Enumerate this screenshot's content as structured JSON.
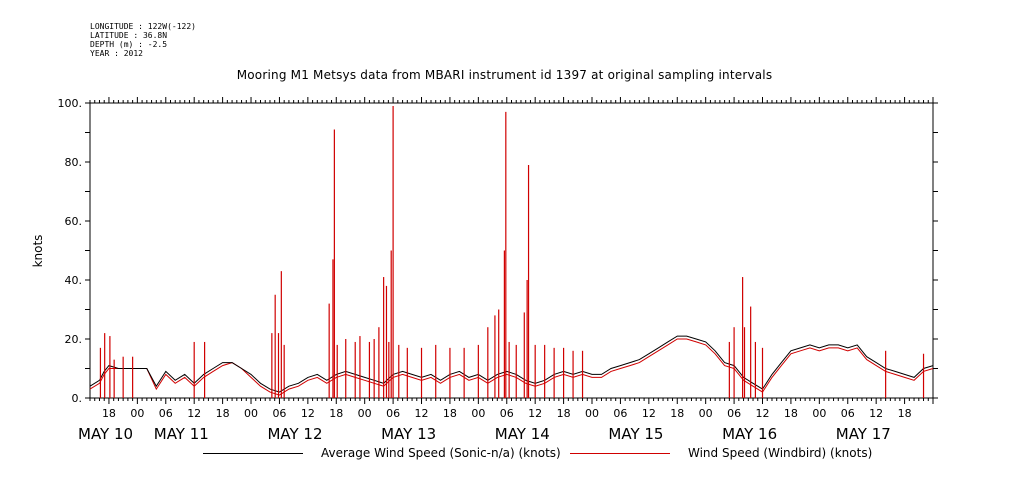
{
  "metadata": {
    "longitude": "LONGITUDE : 122W(-122)",
    "latitude": "LATITUDE : 36.8N",
    "depth": "DEPTH (m) : -2.5",
    "year": "YEAR : 2012"
  },
  "colors": {
    "average": "#000000",
    "windbird": "#d00000"
  },
  "chart_data": {
    "type": "line",
    "title": "Mooring M1 Metsys data from MBARI instrument id 1397 at original sampling intervals",
    "ylabel": "knots",
    "xlabel": "",
    "ylim": [
      0,
      100
    ],
    "yticks": [
      0,
      20,
      40,
      60,
      80,
      100
    ],
    "ytick_labels": [
      "0.",
      "20.",
      "40.",
      "60.",
      "80.",
      "100."
    ],
    "xlim_hours": [
      14,
      192
    ],
    "hour_ticks": [
      {
        "h": 18,
        "label": "18"
      },
      {
        "h": 24,
        "label": "00"
      },
      {
        "h": 30,
        "label": "06"
      },
      {
        "h": 36,
        "label": "12"
      },
      {
        "h": 42,
        "label": "18"
      },
      {
        "h": 48,
        "label": "00"
      },
      {
        "h": 54,
        "label": "06"
      },
      {
        "h": 60,
        "label": "12"
      },
      {
        "h": 66,
        "label": "18"
      },
      {
        "h": 72,
        "label": "00"
      },
      {
        "h": 78,
        "label": "06"
      },
      {
        "h": 84,
        "label": "12"
      },
      {
        "h": 90,
        "label": "18"
      },
      {
        "h": 96,
        "label": "00"
      },
      {
        "h": 102,
        "label": "06"
      },
      {
        "h": 108,
        "label": "12"
      },
      {
        "h": 114,
        "label": "18"
      },
      {
        "h": 120,
        "label": "00"
      },
      {
        "h": 126,
        "label": "06"
      },
      {
        "h": 132,
        "label": "12"
      },
      {
        "h": 138,
        "label": "18"
      },
      {
        "h": 144,
        "label": "00"
      },
      {
        "h": 150,
        "label": "06"
      },
      {
        "h": 156,
        "label": "12"
      },
      {
        "h": 162,
        "label": "18"
      },
      {
        "h": 168,
        "label": "00"
      },
      {
        "h": 174,
        "label": "06"
      },
      {
        "h": 180,
        "label": "12"
      },
      {
        "h": 186,
        "label": "18"
      }
    ],
    "day_labels": [
      {
        "h": 14,
        "label": "MAY 10"
      },
      {
        "h": 30,
        "label": "MAY 11"
      },
      {
        "h": 54,
        "label": "MAY 12"
      },
      {
        "h": 78,
        "label": "MAY 13"
      },
      {
        "h": 102,
        "label": "MAY 14"
      },
      {
        "h": 126,
        "label": "MAY 15"
      },
      {
        "h": 150,
        "label": "MAY 16"
      },
      {
        "h": 174,
        "label": "MAY 17"
      }
    ],
    "series": [
      {
        "name": "Average Wind Speed (Sonic-n/a) (knots)",
        "color": "#000000",
        "x": [
          14,
          16,
          17,
          18,
          20,
          22,
          24,
          26,
          28,
          30,
          32,
          34,
          36,
          38,
          40,
          42,
          44,
          46,
          48,
          50,
          52,
          54,
          56,
          58,
          60,
          62,
          64,
          66,
          68,
          70,
          72,
          74,
          76,
          78,
          80,
          82,
          84,
          86,
          88,
          90,
          92,
          94,
          96,
          98,
          100,
          102,
          104,
          106,
          108,
          110,
          112,
          114,
          116,
          118,
          120,
          122,
          124,
          126,
          128,
          130,
          132,
          134,
          136,
          138,
          140,
          142,
          144,
          146,
          148,
          150,
          152,
          154,
          156,
          158,
          160,
          162,
          164,
          166,
          168,
          170,
          172,
          174,
          176,
          178,
          180,
          182,
          184,
          186,
          188,
          190,
          192
        ],
        "y": [
          4,
          6,
          9,
          11,
          10,
          10,
          10,
          10,
          4,
          9,
          6,
          8,
          5,
          8,
          10,
          12,
          12,
          10,
          8,
          5,
          3,
          2,
          4,
          5,
          7,
          8,
          6,
          8,
          9,
          8,
          7,
          6,
          5,
          8,
          9,
          8,
          7,
          8,
          6,
          8,
          9,
          7,
          8,
          6,
          8,
          9,
          8,
          6,
          5,
          6,
          8,
          9,
          8,
          9,
          8,
          8,
          10,
          11,
          12,
          13,
          15,
          17,
          19,
          21,
          21,
          20,
          19,
          16,
          12,
          11,
          7,
          5,
          3,
          8,
          12,
          16,
          17,
          18,
          17,
          18,
          18,
          17,
          18,
          14,
          12,
          10,
          9,
          8,
          7,
          10,
          11
        ]
      },
      {
        "name": "Wind Speed (Windbird) (knots)",
        "color": "#d00000",
        "x": [
          14,
          16,
          17,
          18,
          20,
          22,
          24,
          26,
          28,
          30,
          32,
          34,
          36,
          38,
          40,
          42,
          44,
          46,
          48,
          50,
          52,
          54,
          56,
          58,
          60,
          62,
          64,
          66,
          68,
          70,
          72,
          74,
          76,
          78,
          80,
          82,
          84,
          86,
          88,
          90,
          92,
          94,
          96,
          98,
          100,
          102,
          104,
          106,
          108,
          110,
          112,
          114,
          116,
          118,
          120,
          122,
          124,
          126,
          128,
          130,
          132,
          134,
          136,
          138,
          140,
          142,
          144,
          146,
          148,
          150,
          152,
          154,
          156,
          158,
          160,
          162,
          164,
          166,
          168,
          170,
          172,
          174,
          176,
          178,
          180,
          182,
          184,
          186,
          188,
          190,
          192
        ],
        "y": [
          3,
          5,
          8,
          10,
          10,
          10,
          10,
          10,
          3,
          8,
          5,
          7,
          4,
          7,
          9,
          11,
          12,
          10,
          7,
          4,
          2,
          1,
          3,
          4,
          6,
          7,
          5,
          7,
          8,
          7,
          6,
          5,
          4,
          7,
          8,
          7,
          6,
          7,
          5,
          7,
          8,
          6,
          7,
          5,
          7,
          8,
          7,
          5,
          4,
          5,
          7,
          8,
          7,
          8,
          7,
          7,
          9,
          10,
          11,
          12,
          14,
          16,
          18,
          20,
          20,
          19,
          18,
          15,
          11,
          10,
          6,
          4,
          2,
          7,
          11,
          15,
          16,
          17,
          16,
          17,
          17,
          16,
          17,
          13,
          11,
          9,
          8,
          7,
          6,
          9,
          10
        ]
      }
    ],
    "windbird_spikes": [
      {
        "x": 16.2,
        "y": 17
      },
      {
        "x": 17.1,
        "y": 22
      },
      {
        "x": 18.2,
        "y": 21
      },
      {
        "x": 19.1,
        "y": 13
      },
      {
        "x": 21,
        "y": 14
      },
      {
        "x": 23,
        "y": 14
      },
      {
        "x": 36,
        "y": 19
      },
      {
        "x": 38.2,
        "y": 19
      },
      {
        "x": 52.4,
        "y": 22
      },
      {
        "x": 53.1,
        "y": 35
      },
      {
        "x": 53.8,
        "y": 22
      },
      {
        "x": 54.4,
        "y": 43
      },
      {
        "x": 55,
        "y": 18
      },
      {
        "x": 64.5,
        "y": 32
      },
      {
        "x": 65.3,
        "y": 47
      },
      {
        "x": 65.6,
        "y": 91
      },
      {
        "x": 66.2,
        "y": 18
      },
      {
        "x": 68,
        "y": 20
      },
      {
        "x": 70,
        "y": 19
      },
      {
        "x": 71,
        "y": 21
      },
      {
        "x": 73,
        "y": 19
      },
      {
        "x": 74,
        "y": 20
      },
      {
        "x": 75,
        "y": 24
      },
      {
        "x": 76,
        "y": 41
      },
      {
        "x": 76.6,
        "y": 38
      },
      {
        "x": 77.1,
        "y": 19
      },
      {
        "x": 77.6,
        "y": 50
      },
      {
        "x": 78,
        "y": 99
      },
      {
        "x": 79.2,
        "y": 18
      },
      {
        "x": 81,
        "y": 17
      },
      {
        "x": 84,
        "y": 17
      },
      {
        "x": 87,
        "y": 18
      },
      {
        "x": 90,
        "y": 17
      },
      {
        "x": 93,
        "y": 17
      },
      {
        "x": 96,
        "y": 18
      },
      {
        "x": 98,
        "y": 24
      },
      {
        "x": 99.5,
        "y": 28
      },
      {
        "x": 100.3,
        "y": 30
      },
      {
        "x": 101.5,
        "y": 50
      },
      {
        "x": 101.8,
        "y": 97
      },
      {
        "x": 102.5,
        "y": 19
      },
      {
        "x": 104,
        "y": 18
      },
      {
        "x": 105.7,
        "y": 29
      },
      {
        "x": 106.3,
        "y": 40
      },
      {
        "x": 106.6,
        "y": 79
      },
      {
        "x": 108,
        "y": 18
      },
      {
        "x": 110,
        "y": 18
      },
      {
        "x": 112,
        "y": 17
      },
      {
        "x": 114,
        "y": 17
      },
      {
        "x": 116,
        "y": 16
      },
      {
        "x": 118,
        "y": 16
      },
      {
        "x": 149,
        "y": 19
      },
      {
        "x": 150,
        "y": 24
      },
      {
        "x": 151.8,
        "y": 41
      },
      {
        "x": 152.2,
        "y": 24
      },
      {
        "x": 153.5,
        "y": 31
      },
      {
        "x": 154.5,
        "y": 19
      },
      {
        "x": 156,
        "y": 17
      },
      {
        "x": 182,
        "y": 16
      },
      {
        "x": 190,
        "y": 15
      }
    ],
    "legend_position": "bottom"
  },
  "legend": {
    "average_label": "Average Wind Speed (Sonic-n/a) (knots)",
    "windbird_label": "Wind Speed (Windbird) (knots)"
  }
}
